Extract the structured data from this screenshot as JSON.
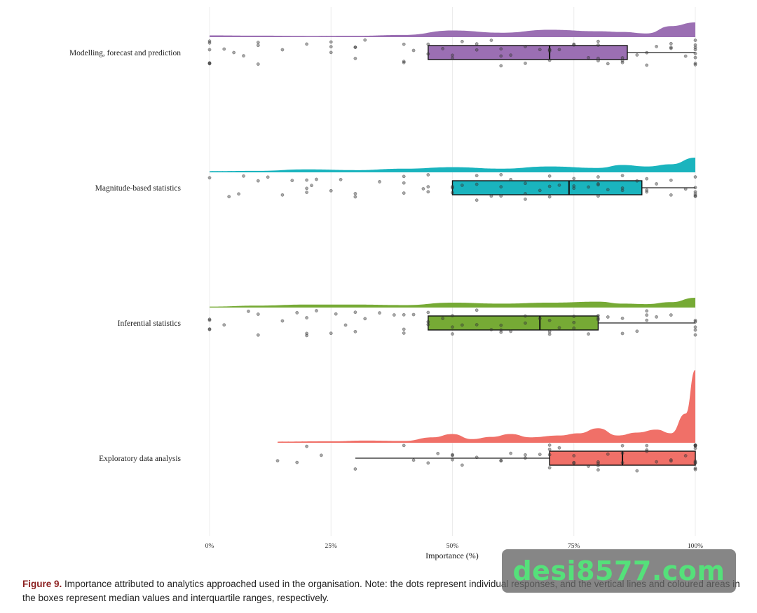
{
  "chart_data": {
    "type": "raincloud",
    "xlabel": "Importance (%)",
    "xticks": [
      "0%",
      "25%",
      "50%",
      "75%",
      "100%"
    ],
    "xlim": [
      0,
      100
    ],
    "grid": "vertical",
    "legend": "none",
    "series": [
      {
        "name": "Modelling, forecast and prediction",
        "color": "#9b6fb3",
        "box": {
          "q1": 45,
          "median": 70,
          "q3": 86,
          "whisker_low": 45,
          "whisker_high": 100
        },
        "density": [
          [
            0,
            1.2
          ],
          [
            10,
            1.0
          ],
          [
            20,
            0.8
          ],
          [
            30,
            0.9
          ],
          [
            40,
            1.5
          ],
          [
            50,
            4.5
          ],
          [
            60,
            3.0
          ],
          [
            70,
            5.0
          ],
          [
            80,
            4.0
          ],
          [
            85,
            3.5
          ],
          [
            90,
            2.5
          ],
          [
            95,
            7.5
          ],
          [
            100,
            10
          ]
        ],
        "points": [
          0,
          0,
          0,
          0,
          0,
          0,
          3,
          5,
          7,
          10,
          10,
          10,
          15,
          20,
          25,
          25,
          25,
          30,
          30,
          30,
          32,
          40,
          40,
          40,
          42,
          45,
          45,
          48,
          50,
          50,
          52,
          55,
          55,
          58,
          60,
          60,
          60,
          62,
          65,
          65,
          68,
          70,
          70,
          70,
          70,
          72,
          75,
          75,
          78,
          80,
          80,
          80,
          80,
          82,
          85,
          85,
          85,
          88,
          90,
          90,
          92,
          95,
          95,
          95,
          98,
          100,
          100,
          100,
          100,
          100,
          100,
          100,
          100
        ]
      },
      {
        "name": "Magnitude-based statistics",
        "color": "#1ab4be",
        "box": {
          "q1": 50,
          "median": 74,
          "q3": 89,
          "whisker_low": 50,
          "whisker_high": 100
        },
        "density": [
          [
            0,
            0.8
          ],
          [
            10,
            1.0
          ],
          [
            20,
            2.0
          ],
          [
            30,
            1.5
          ],
          [
            40,
            2.5
          ],
          [
            50,
            3.5
          ],
          [
            60,
            2.5
          ],
          [
            70,
            4.0
          ],
          [
            80,
            3.0
          ],
          [
            85,
            5.0
          ],
          [
            90,
            4.0
          ],
          [
            95,
            5.5
          ],
          [
            100,
            10
          ]
        ],
        "points": [
          0,
          4,
          6,
          7,
          10,
          12,
          15,
          17,
          20,
          20,
          20,
          21,
          22,
          25,
          27,
          30,
          30,
          35,
          40,
          40,
          40,
          44,
          45,
          45,
          45,
          50,
          50,
          50,
          52,
          55,
          55,
          55,
          58,
          60,
          60,
          60,
          62,
          65,
          65,
          65,
          68,
          70,
          70,
          70,
          72,
          75,
          75,
          75,
          78,
          80,
          80,
          80,
          80,
          82,
          85,
          85,
          85,
          88,
          90,
          90,
          90,
          92,
          95,
          95,
          98,
          100,
          100,
          100,
          100,
          100,
          100
        ]
      },
      {
        "name": "Inferential statistics",
        "color": "#76aa35",
        "box": {
          "q1": 45,
          "median": 68,
          "q3": 80,
          "whisker_low": 45,
          "whisker_high": 100
        },
        "density": [
          [
            0,
            1.0
          ],
          [
            10,
            2.0
          ],
          [
            20,
            3.0
          ],
          [
            30,
            3.0
          ],
          [
            40,
            2.5
          ],
          [
            50,
            5.0
          ],
          [
            60,
            4.0
          ],
          [
            70,
            5.0
          ],
          [
            80,
            6.0
          ],
          [
            85,
            4.0
          ],
          [
            90,
            3.5
          ],
          [
            95,
            5.5
          ],
          [
            100,
            10
          ]
        ],
        "points": [
          0,
          0,
          0,
          0,
          3,
          8,
          10,
          10,
          15,
          18,
          20,
          20,
          20,
          22,
          25,
          26,
          28,
          30,
          30,
          32,
          35,
          38,
          40,
          40,
          40,
          42,
          45,
          45,
          45,
          48,
          50,
          50,
          50,
          52,
          55,
          55,
          58,
          60,
          60,
          60,
          62,
          65,
          65,
          68,
          70,
          70,
          70,
          72,
          75,
          75,
          75,
          78,
          80,
          80,
          80,
          82,
          85,
          85,
          88,
          90,
          90,
          90,
          92,
          95,
          100,
          100,
          100,
          100,
          100
        ]
      },
      {
        "name": "Exploratory data analysis",
        "color": "#f07068",
        "box": {
          "q1": 70,
          "median": 85,
          "q3": 100,
          "whisker_low": 30,
          "whisker_high": 100
        },
        "density": [
          [
            14,
            0.3
          ],
          [
            25,
            0.4
          ],
          [
            32,
            0.6
          ],
          [
            40,
            0.5
          ],
          [
            46,
            1.5
          ],
          [
            50,
            2.4
          ],
          [
            54,
            1.0
          ],
          [
            58,
            1.6
          ],
          [
            62,
            2.4
          ],
          [
            66,
            1.5
          ],
          [
            72,
            2.0
          ],
          [
            76,
            2.6
          ],
          [
            80,
            4.0
          ],
          [
            84,
            2.0
          ],
          [
            88,
            2.8
          ],
          [
            92,
            3.6
          ],
          [
            95,
            2.6
          ],
          [
            98,
            8.0
          ],
          [
            100,
            20
          ]
        ],
        "points": [
          14,
          18,
          20,
          23,
          30,
          40,
          42,
          45,
          47,
          50,
          50,
          50,
          52,
          55,
          60,
          60,
          62,
          65,
          65,
          68,
          70,
          70,
          70,
          70,
          72,
          75,
          75,
          75,
          78,
          80,
          80,
          80,
          80,
          82,
          85,
          85,
          85,
          88,
          90,
          90,
          90,
          92,
          95,
          95,
          98,
          100,
          100,
          100,
          100,
          100,
          100,
          100,
          100,
          100,
          100
        ]
      }
    ]
  },
  "caption": {
    "figure_label": "Figure 9.",
    "text": " Importance attributed to analytics approached used in the organisation. Note: the dots represent individual responses, and the vertical lines and coloured areas in the boxes represent median values and interquartile ranges, respectively."
  },
  "watermark": {
    "text": "desi8577.com"
  }
}
